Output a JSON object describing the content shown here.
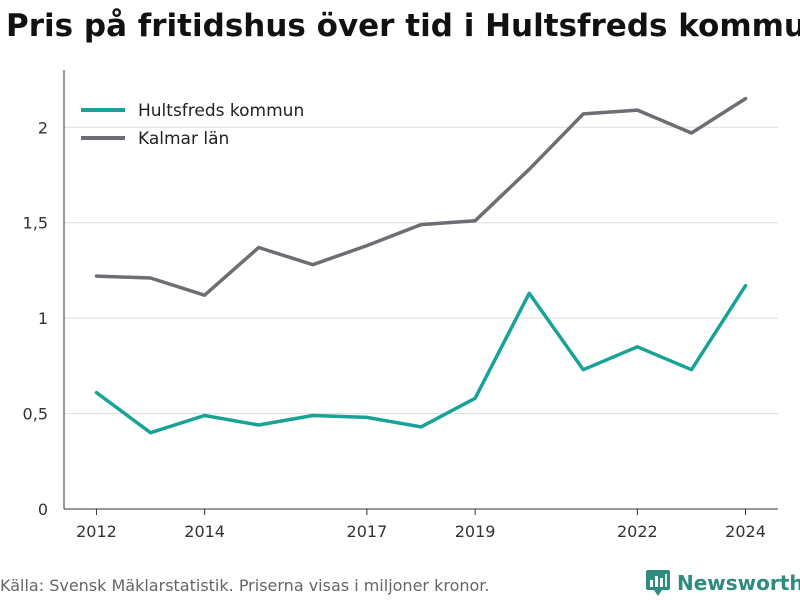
{
  "chart_data": {
    "type": "line",
    "title": "Pris på fritidshus över tid i Hultsfreds kommun",
    "x": [
      2012,
      2013,
      2014,
      2015,
      2016,
      2017,
      2018,
      2019,
      2020,
      2021,
      2022,
      2023,
      2024
    ],
    "x_ticks": [
      "2012",
      "2014",
      "2017",
      "2019",
      "2022",
      "2024"
    ],
    "y_ticks": [
      "0",
      "0,5",
      "1",
      "1,5",
      "2"
    ],
    "ylim": [
      0,
      2.3
    ],
    "xlim": [
      2011.4,
      2024.6
    ],
    "grid": true,
    "legend_position": "top-left",
    "series": [
      {
        "name": "Hultsfreds kommun",
        "color": "#17a398",
        "values": [
          0.61,
          0.4,
          0.49,
          0.44,
          0.49,
          0.48,
          0.43,
          0.58,
          1.13,
          0.73,
          0.85,
          0.73,
          1.17
        ]
      },
      {
        "name": "Kalmar län",
        "color": "#6d6e73",
        "values": [
          1.22,
          1.21,
          1.12,
          1.37,
          1.28,
          1.38,
          1.49,
          1.51,
          1.78,
          2.07,
          2.09,
          1.97,
          2.15
        ]
      }
    ]
  },
  "footer": {
    "source": "Källa: Svensk Mäklarstatistik. Priserna visas i miljoner kronor.",
    "brand": "Newsworthy",
    "brand_color": "#2e8b7e"
  }
}
